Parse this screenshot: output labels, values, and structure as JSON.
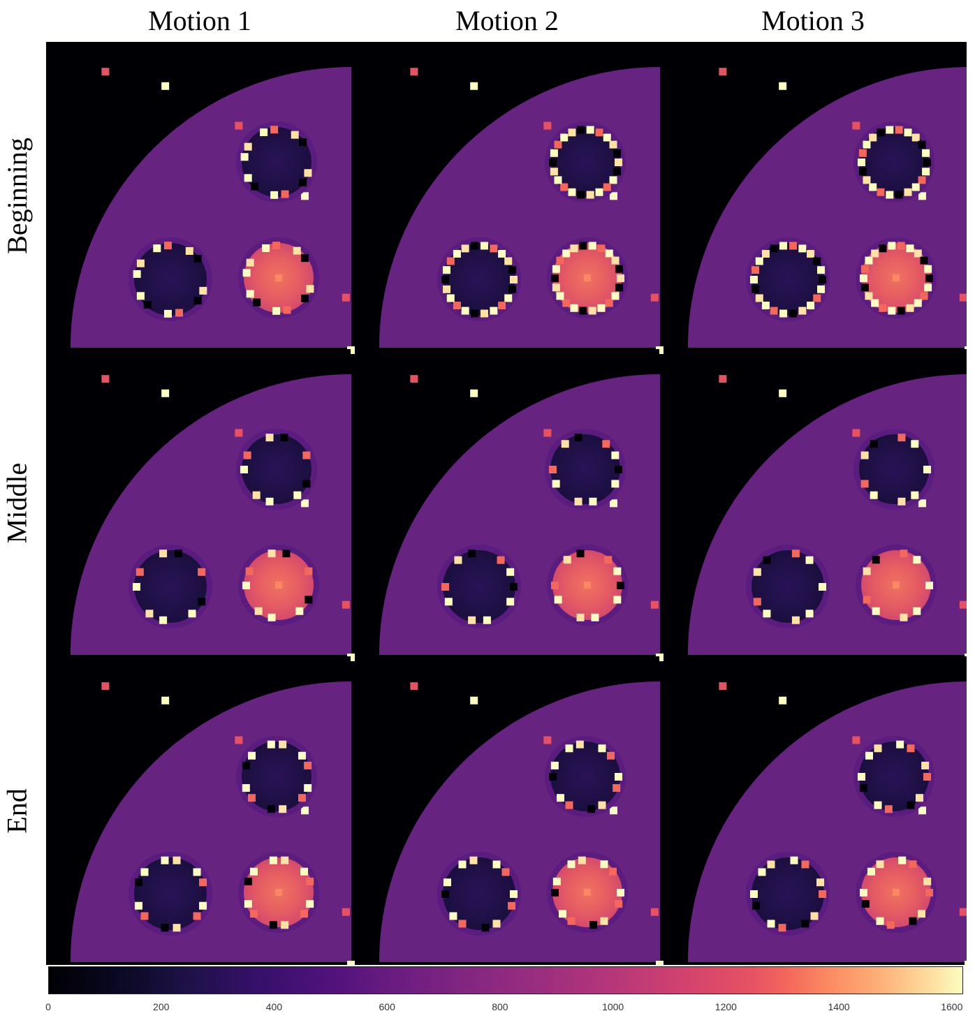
{
  "columns": [
    "Motion 1",
    "Motion 2",
    "Motion 3"
  ],
  "rows": [
    "Beginning",
    "Middle",
    "End"
  ],
  "colorbar": {
    "min": 0,
    "max": 1620,
    "ticks": [
      "0",
      "200",
      "400",
      "600",
      "800",
      "1000",
      "1200",
      "1400",
      "1600"
    ],
    "colormap": "magma"
  }
}
